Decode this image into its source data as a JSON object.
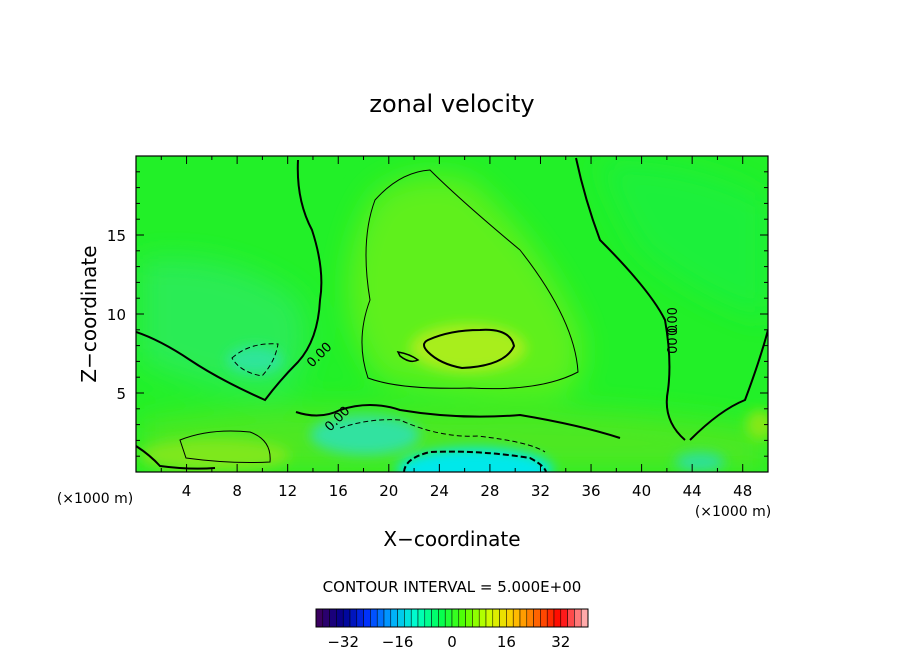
{
  "chart_data": {
    "type": "heatmap",
    "title": "zonal velocity",
    "xlabel": "X−coordinate",
    "ylabel": "Z−coordinate",
    "x_unit": "(×1000 m)",
    "z_unit": "(×1000 m)",
    "xlim": [
      0,
      50
    ],
    "ylim": [
      0,
      20
    ],
    "x_ticks": [
      "4",
      "8",
      "12",
      "16",
      "20",
      "24",
      "28",
      "32",
      "36",
      "40",
      "44",
      "48"
    ],
    "y_ticks": [
      "5",
      "10",
      "15"
    ],
    "contour_interval_text": "CONTOUR INTERVAL = 5.000E+00",
    "zero_contour_labels": [
      "0.00",
      "0.00",
      "0.00",
      "0.00"
    ],
    "colorbar": {
      "range": [
        -40,
        40
      ],
      "ticks": [
        "−32",
        "−16",
        "0",
        "16",
        "32"
      ],
      "colors": [
        "#3a0060",
        "#000090",
        "#0033ff",
        "#00aaff",
        "#00ffcc",
        "#00ff55",
        "#55ff00",
        "#ccff00",
        "#ffcc00",
        "#ff6600",
        "#ff0000",
        "#ffaaaa"
      ]
    }
  }
}
